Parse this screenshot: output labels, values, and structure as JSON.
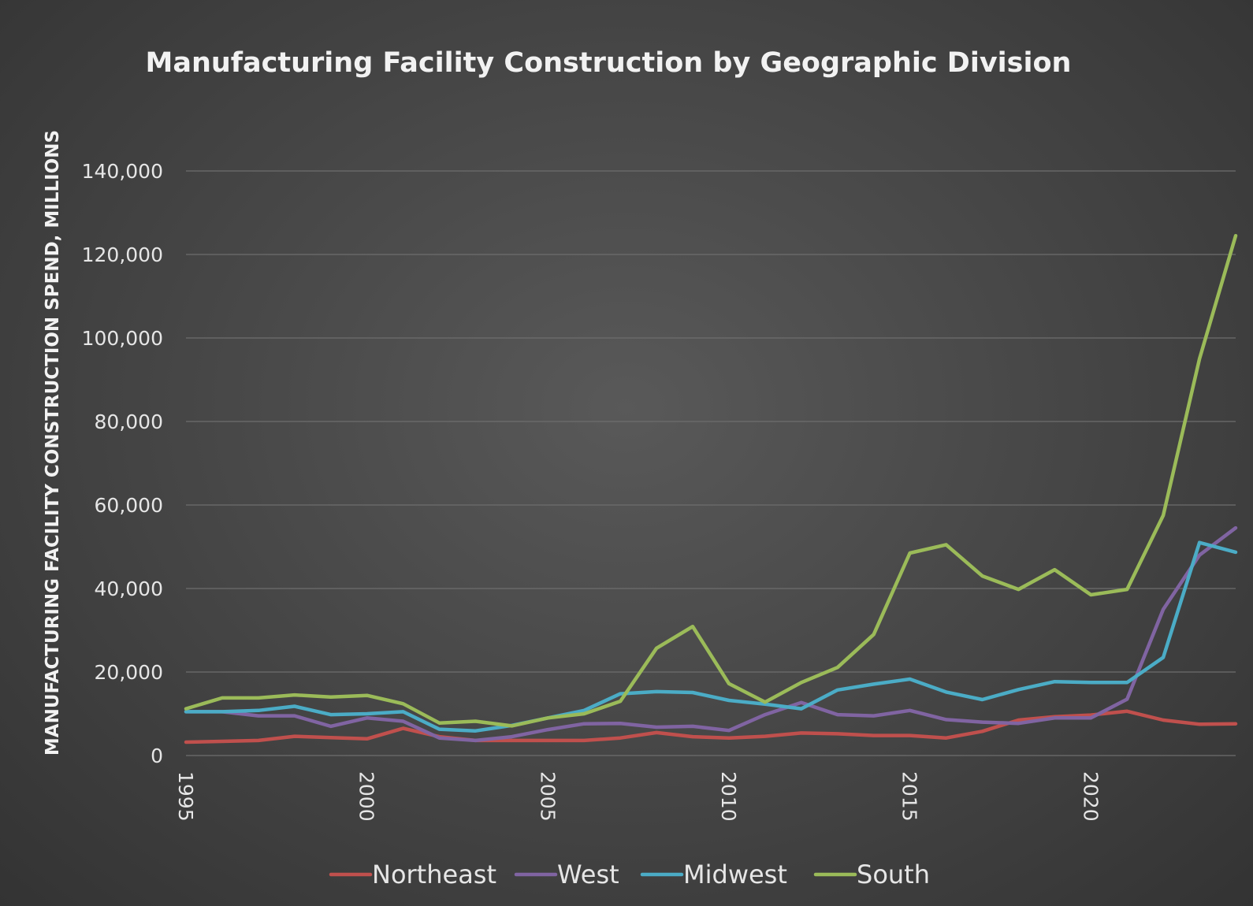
{
  "chart_data": {
    "type": "line",
    "title": "Manufacturing Facility Construction by Geographic Division",
    "xlabel": "",
    "ylabel": "MANUFACTURING FACILITY CONSTRUCTION SPEND, MILLIONS",
    "x": [
      1995,
      1996,
      1997,
      1998,
      1999,
      2000,
      2001,
      2002,
      2003,
      2004,
      2005,
      2006,
      2007,
      2008,
      2009,
      2010,
      2011,
      2012,
      2013,
      2014,
      2015,
      2016,
      2017,
      2018,
      2019,
      2020,
      2021,
      2022,
      2023,
      2024
    ],
    "x_ticks": [
      1995,
      2000,
      2005,
      2010,
      2015,
      2020
    ],
    "x_tick_labels": [
      "1995",
      "2000",
      "2005",
      "2010",
      "2015",
      "2020"
    ],
    "ylim": [
      0,
      140000
    ],
    "y_ticks": [
      0,
      20000,
      40000,
      60000,
      80000,
      100000,
      120000,
      140000
    ],
    "y_tick_labels": [
      "0",
      "20,000",
      "40,000",
      "60,000",
      "80,000",
      "100,000",
      "120,000",
      "140,000"
    ],
    "grid": true,
    "legend_position": "bottom",
    "series": [
      {
        "name": "Northeast",
        "color": "#c0504d",
        "values": [
          3200,
          3400,
          3600,
          4600,
          4300,
          4000,
          6500,
          4500,
          3600,
          3600,
          3600,
          3600,
          4200,
          5500,
          4500,
          4200,
          4600,
          5400,
          5200,
          4800,
          4800,
          4200,
          5800,
          8500,
          9300,
          9700,
          10600,
          8500,
          7500,
          7600
        ]
      },
      {
        "name": "West",
        "color": "#8064a2",
        "values": [
          10500,
          10500,
          9500,
          9500,
          7000,
          9000,
          8200,
          4200,
          3600,
          4500,
          6200,
          7600,
          7700,
          6800,
          7000,
          6000,
          9800,
          12700,
          9800,
          9500,
          10800,
          8600,
          8000,
          7700,
          9000,
          9000,
          13500,
          35000,
          48000,
          54500
        ]
      },
      {
        "name": "Midwest",
        "color": "#4bacc6",
        "values": [
          10500,
          10500,
          10800,
          11800,
          9800,
          10000,
          10500,
          6300,
          5900,
          7200,
          9000,
          10800,
          14800,
          15300,
          15100,
          13200,
          12300,
          11200,
          15700,
          17100,
          18300,
          15200,
          13400,
          15800,
          17700,
          17500,
          17500,
          23500,
          51000,
          48700
        ]
      },
      {
        "name": "South",
        "color": "#9bbb59",
        "values": [
          11200,
          13800,
          13800,
          14500,
          14000,
          14400,
          12400,
          7800,
          8200,
          7100,
          9000,
          10000,
          13000,
          25700,
          30900,
          17200,
          12800,
          17500,
          21100,
          29000,
          48500,
          50500,
          43000,
          39800,
          44500,
          38500,
          39800,
          57500,
          95000,
          124500
        ]
      }
    ]
  }
}
